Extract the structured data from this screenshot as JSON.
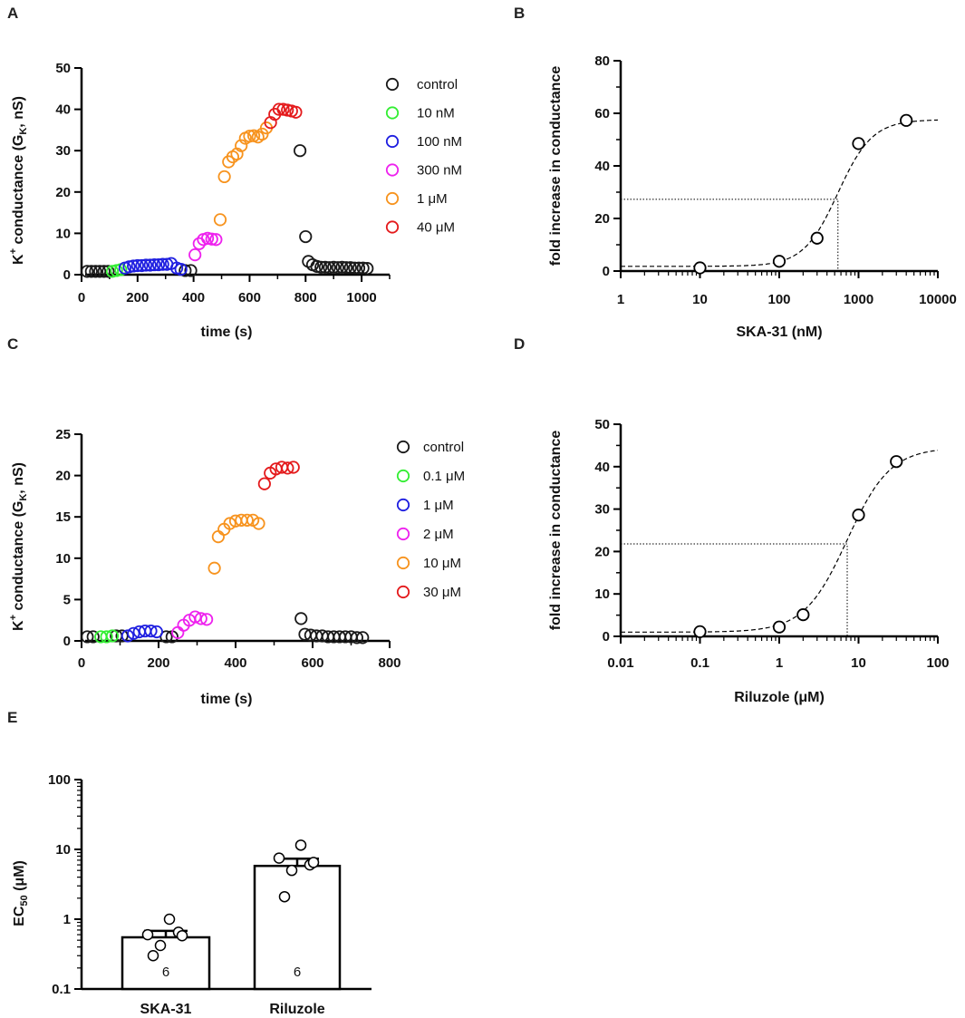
{
  "chart_data": [
    {
      "id": "A",
      "panel_label": "A",
      "type": "scatter",
      "xlabel": "time (s)",
      "ylabel_main": "K",
      "ylabel_sup": "+",
      "ylabel_mid": " conductance (G",
      "ylabel_sub": "K",
      "ylabel_end": ", nS)",
      "xlim": [
        0,
        1100
      ],
      "ylim": [
        0,
        50
      ],
      "xticks": [
        "0",
        "200",
        "400",
        "600",
        "800",
        "1000"
      ],
      "xtick_values": [
        0,
        200,
        400,
        600,
        800,
        1000
      ],
      "yticks": [
        "0",
        "10",
        "20",
        "30",
        "40",
        "50"
      ],
      "ytick_values": [
        0,
        10,
        20,
        30,
        40,
        50
      ],
      "legend_position": "top-right",
      "series": [
        {
          "name": "control",
          "color": "#1a1a1a",
          "x": [
            20,
            35,
            50,
            65,
            80,
            95,
            370,
            390,
            780,
            800,
            810,
            825,
            840,
            855,
            870,
            885,
            900,
            915,
            930,
            945,
            960,
            975,
            990,
            1005,
            1020
          ],
          "y": [
            0.8,
            0.8,
            0.8,
            0.8,
            0.8,
            0.8,
            1.0,
            1.0,
            30,
            9.2,
            3.2,
            2.4,
            2.0,
            1.8,
            1.8,
            1.7,
            1.8,
            1.7,
            1.8,
            1.7,
            1.7,
            1.6,
            1.6,
            1.6,
            1.5
          ]
        },
        {
          "name": "10 nM",
          "color": "#33ee33",
          "x": [
            110,
            125,
            140
          ],
          "y": [
            0.8,
            1.0,
            1.2
          ]
        },
        {
          "name": "100 nM",
          "color": "#1f1fe0",
          "x": [
            155,
            170,
            185,
            200,
            215,
            230,
            245,
            260,
            275,
            290,
            305,
            320,
            340,
            355
          ],
          "y": [
            1.6,
            1.9,
            2.1,
            2.2,
            2.2,
            2.3,
            2.3,
            2.4,
            2.4,
            2.5,
            2.5,
            2.7,
            1.6,
            1.3
          ]
        },
        {
          "name": "300 nM",
          "color": "#ee22ee",
          "x": [
            405,
            420,
            435,
            450,
            465,
            480
          ],
          "y": [
            4.8,
            7.5,
            8.5,
            8.8,
            8.6,
            8.5
          ]
        },
        {
          "name": "1 μM",
          "color": "#f7931e",
          "x": [
            495,
            510,
            525,
            540,
            555,
            570,
            585,
            600,
            615,
            630,
            645,
            660
          ],
          "y": [
            13.3,
            23.7,
            27.3,
            28.5,
            29.2,
            31.2,
            33.0,
            33.5,
            33.6,
            33.3,
            34.0,
            35.5
          ]
        },
        {
          "name": "40 μM",
          "color": "#e41a1c",
          "x": [
            675,
            690,
            705,
            720,
            735,
            750,
            765
          ],
          "y": [
            36.8,
            38.8,
            40.0,
            40.0,
            39.8,
            39.6,
            39.3
          ]
        }
      ]
    },
    {
      "id": "B",
      "panel_label": "B",
      "type": "scatter",
      "xscale": "log",
      "xlabel": "SKA-31 (nM)",
      "ylabel": "fold increase in conductance",
      "xlim": [
        1,
        10000
      ],
      "ylim": [
        0,
        80
      ],
      "xticks": [
        "1",
        "10",
        "100",
        "1000",
        "10000"
      ],
      "xtick_values": [
        1,
        10,
        100,
        1000,
        10000
      ],
      "yticks": [
        "0",
        "20",
        "40",
        "60",
        "80"
      ],
      "ytick_values": [
        0,
        20,
        40,
        60,
        80
      ],
      "points": {
        "x": [
          10,
          100,
          300,
          1000,
          4000
        ],
        "y": [
          1.2,
          3.7,
          12.5,
          48.5,
          57.3
        ]
      },
      "fit": {
        "bottom": 1.8,
        "top": 57.6,
        "ec50": 550,
        "hill": 2.0,
        "style": "dashed"
      },
      "ec50_guide": {
        "x": 550,
        "y": 27.3,
        "style": "dotted"
      }
    },
    {
      "id": "C",
      "panel_label": "C",
      "type": "scatter",
      "xlabel": "time (s)",
      "ylabel_main": "K",
      "ylabel_sup": "+",
      "ylabel_mid": " conductance (G",
      "ylabel_sub": "K",
      "ylabel_end": ", nS)",
      "xlim": [
        0,
        800
      ],
      "ylim": [
        0,
        25
      ],
      "xticks": [
        "0",
        "200",
        "400",
        "600",
        "800"
      ],
      "xtick_values": [
        0,
        200,
        400,
        600,
        800
      ],
      "yticks": [
        "0",
        "5",
        "10",
        "15",
        "20",
        "25"
      ],
      "ytick_values": [
        0,
        5,
        10,
        15,
        20,
        25
      ],
      "legend_position": "top-right",
      "series": [
        {
          "name": "control",
          "color": "#1a1a1a",
          "x": [
            15,
            30,
            90,
            105,
            220,
            235,
            570,
            580,
            595,
            610,
            625,
            640,
            655,
            670,
            685,
            700,
            715,
            730
          ],
          "y": [
            0.5,
            0.5,
            0.6,
            0.6,
            0.5,
            0.5,
            2.7,
            0.8,
            0.7,
            0.6,
            0.6,
            0.5,
            0.5,
            0.5,
            0.5,
            0.5,
            0.4,
            0.4
          ]
        },
        {
          "name": "0.1 μM",
          "color": "#33ee33",
          "x": [
            50,
            65,
            80
          ],
          "y": [
            0.5,
            0.5,
            0.6
          ]
        },
        {
          "name": "1 μM",
          "color": "#1f1fe0",
          "x": [
            120,
            135,
            150,
            165,
            180,
            195
          ],
          "y": [
            0.6,
            0.9,
            1.1,
            1.2,
            1.2,
            1.1
          ]
        },
        {
          "name": "2 μM",
          "color": "#ee22ee",
          "x": [
            250,
            265,
            280,
            295,
            310,
            325
          ],
          "y": [
            1.0,
            1.9,
            2.5,
            2.9,
            2.7,
            2.6
          ]
        },
        {
          "name": "10 μM",
          "color": "#f7931e",
          "x": [
            345,
            355,
            370,
            385,
            400,
            415,
            430,
            445,
            460
          ],
          "y": [
            8.8,
            12.6,
            13.5,
            14.2,
            14.5,
            14.6,
            14.6,
            14.6,
            14.2
          ]
        },
        {
          "name": "30 μM",
          "color": "#e41a1c",
          "x": [
            475,
            490,
            505,
            520,
            535,
            550
          ],
          "y": [
            19.0,
            20.3,
            20.8,
            21.0,
            20.9,
            21.0
          ]
        }
      ]
    },
    {
      "id": "D",
      "panel_label": "D",
      "type": "scatter",
      "xscale": "log",
      "xlabel": "Riluzole (μM)",
      "ylabel": "fold increase in conductance",
      "xlim": [
        0.01,
        100
      ],
      "ylim": [
        0,
        50
      ],
      "xticks": [
        "0.01",
        "0.1",
        "1",
        "10",
        "100"
      ],
      "xtick_values": [
        0.01,
        0.1,
        1,
        10,
        100
      ],
      "yticks": [
        "0",
        "10",
        "20",
        "30",
        "40",
        "50"
      ],
      "ytick_values": [
        0,
        10,
        20,
        30,
        40,
        50
      ],
      "points": {
        "x": [
          0.1,
          1,
          2,
          10,
          30
        ],
        "y": [
          1.1,
          2.2,
          5.1,
          28.6,
          41.2
        ]
      },
      "fit": {
        "bottom": 1.0,
        "top": 44.5,
        "ec50": 7.2,
        "hill": 1.6,
        "style": "dashed"
      },
      "ec50_guide": {
        "x": 7.2,
        "y": 21.8,
        "style": "dotted"
      }
    },
    {
      "id": "E",
      "panel_label": "E",
      "type": "bar",
      "yscale": "log",
      "ylabel_main": "EC",
      "ylabel_sub": "50",
      "ylabel_end": " (μM)",
      "ylim": [
        0.1,
        100
      ],
      "yticks": [
        "0.1",
        "1",
        "10",
        "100"
      ],
      "ytick_values": [
        0.1,
        1,
        10,
        100
      ],
      "categories": [
        "SKA-31",
        "Riluzole"
      ],
      "values": [
        0.55,
        5.8
      ],
      "sem": [
        0.13,
        1.55
      ],
      "n_labels": [
        "6",
        "6"
      ],
      "individual_points": [
        [
          0.6,
          1.0,
          0.65,
          0.42,
          0.3,
          0.58
        ],
        [
          7.5,
          11.5,
          6.0,
          5.0,
          2.1,
          6.5
        ]
      ]
    }
  ]
}
